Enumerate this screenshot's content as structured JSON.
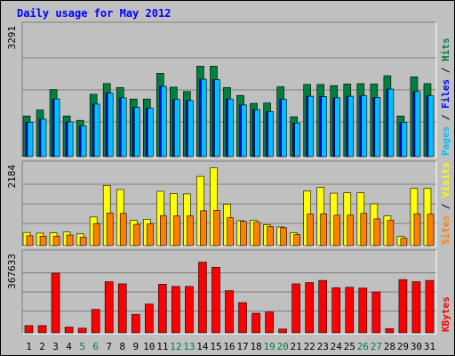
{
  "window": {
    "title": "Daily usage for May 2012"
  },
  "chart_data": [
    {
      "type": "bar",
      "panel": "top",
      "categories": [
        "1",
        "2",
        "3",
        "4",
        "5",
        "6",
        "7",
        "8",
        "9",
        "10",
        "11",
        "12",
        "13",
        "14",
        "15",
        "16",
        "17",
        "18",
        "19",
        "20",
        "21",
        "22",
        "23",
        "24",
        "25",
        "26",
        "27",
        "28",
        "29",
        "30",
        "31"
      ],
      "weekend_days": [
        "5",
        "6",
        "12",
        "13",
        "19",
        "20",
        "26",
        "27"
      ],
      "ymax_label": "3291",
      "ylim": [
        0,
        3291
      ],
      "grid": true,
      "series": [
        {
          "name": "Hits",
          "color": "#008040",
          "values": [
            1030,
            1180,
            1700,
            1030,
            920,
            1580,
            1850,
            1750,
            1460,
            1460,
            2110,
            1760,
            1650,
            2290,
            2290,
            1750,
            1550,
            1350,
            1360,
            1770,
            1010,
            1830,
            1830,
            1800,
            1840,
            1850,
            1840,
            2050,
            1030,
            2020,
            1850
          ]
        },
        {
          "name": "Files",
          "color": "#0000ff",
          "values": [
            870,
            950,
            1460,
            880,
            780,
            1330,
            1610,
            1490,
            1250,
            1230,
            1780,
            1450,
            1420,
            1960,
            1950,
            1460,
            1310,
            1190,
            1140,
            1450,
            850,
            1530,
            1520,
            1490,
            1530,
            1540,
            1500,
            1710,
            870,
            1650,
            1540
          ]
        },
        {
          "name": "Pages",
          "color": "#00c0ff",
          "values": [
            870,
            950,
            1460,
            880,
            780,
            1330,
            1610,
            1490,
            1250,
            1230,
            1780,
            1450,
            1420,
            1960,
            1950,
            1460,
            1310,
            1190,
            1140,
            1450,
            850,
            1530,
            1520,
            1490,
            1530,
            1540,
            1500,
            1710,
            870,
            1650,
            1540
          ]
        }
      ]
    },
    {
      "type": "bar",
      "panel": "middle",
      "categories": [
        "1",
        "2",
        "3",
        "4",
        "5",
        "6",
        "7",
        "8",
        "9",
        "10",
        "11",
        "12",
        "13",
        "14",
        "15",
        "16",
        "17",
        "18",
        "19",
        "20",
        "21",
        "22",
        "23",
        "24",
        "25",
        "26",
        "27",
        "28",
        "29",
        "30",
        "31"
      ],
      "ymax_label": "2184",
      "ylim": [
        0,
        2184
      ],
      "grid": true,
      "series": [
        {
          "name": "Visits",
          "color": "#ffff00",
          "values": [
            360,
            340,
            350,
            370,
            320,
            780,
            1640,
            1530,
            690,
            720,
            1480,
            1420,
            1410,
            1890,
            2120,
            1130,
            680,
            690,
            570,
            510,
            350,
            1490,
            1590,
            1430,
            1440,
            1440,
            1140,
            810,
            250,
            1560,
            1560
          ]
        },
        {
          "name": "Sites",
          "color": "#ff8000",
          "values": [
            270,
            260,
            260,
            290,
            230,
            600,
            890,
            880,
            580,
            590,
            820,
            810,
            810,
            950,
            960,
            760,
            660,
            640,
            520,
            490,
            300,
            860,
            870,
            830,
            830,
            880,
            730,
            690,
            200,
            870,
            860
          ]
        }
      ]
    },
    {
      "type": "bar",
      "panel": "bottom",
      "categories": [
        "1",
        "2",
        "3",
        "4",
        "5",
        "6",
        "7",
        "8",
        "9",
        "10",
        "11",
        "12",
        "13",
        "14",
        "15",
        "16",
        "17",
        "18",
        "19",
        "20",
        "21",
        "22",
        "23",
        "24",
        "25",
        "26",
        "27",
        "28",
        "29",
        "30",
        "31"
      ],
      "ymax_label": "367633",
      "ylim": [
        0,
        367633
      ],
      "grid": true,
      "series": [
        {
          "name": "KBytes",
          "color": "#ff0000",
          "values": [
            34000,
            34000,
            280000,
            27000,
            22000,
            110000,
            240000,
            230000,
            87000,
            135000,
            228000,
            218000,
            218000,
            332000,
            308000,
            198000,
            142000,
            92000,
            98000,
            18000,
            230000,
            236000,
            246000,
            212000,
            214000,
            210000,
            192000,
            20000,
            250000,
            240000,
            246000
          ]
        }
      ]
    }
  ]
}
